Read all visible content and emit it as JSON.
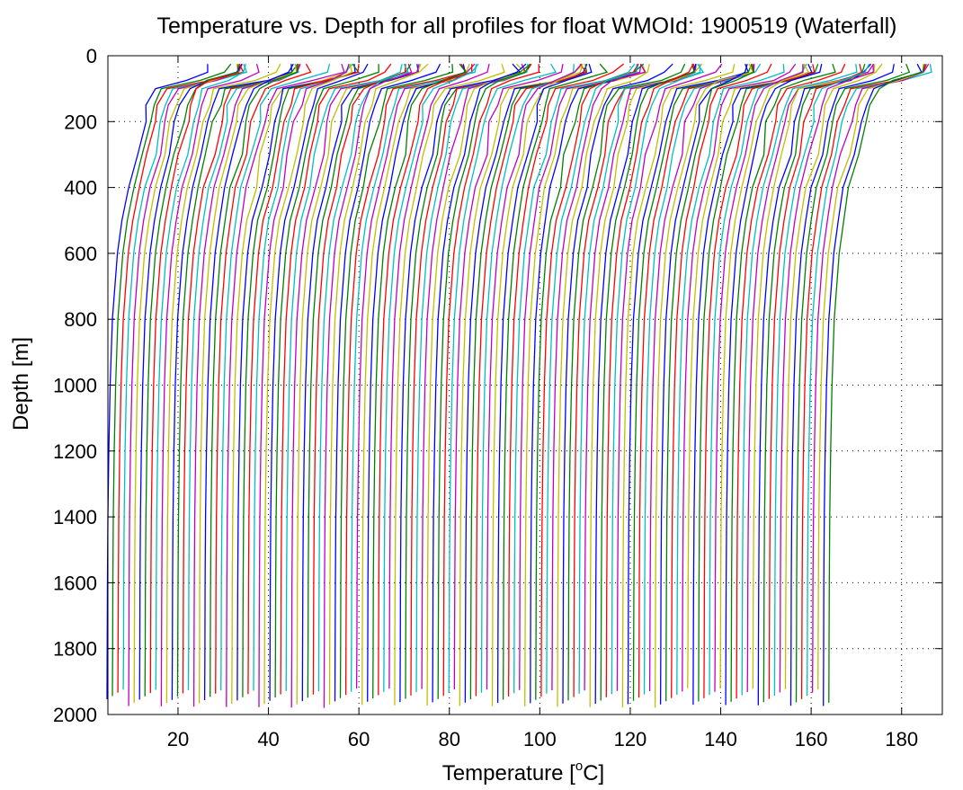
{
  "chart_data": {
    "type": "line",
    "title": "Temperature vs. Depth for all profiles for float WMOId: 1900519 (Waterfall)",
    "xlabel": {
      "before": "Temperature [",
      "sup": "o",
      "after": "C]"
    },
    "ylabel": "Depth [m]",
    "xlim": [
      4.5,
      189
    ],
    "ylim": [
      2000,
      0
    ],
    "y_reversed": true,
    "grid": true,
    "grid_style": "dotted",
    "x_ticks": [
      20,
      40,
      60,
      80,
      100,
      120,
      140,
      160,
      180
    ],
    "y_ticks": [
      0,
      200,
      400,
      600,
      800,
      1000,
      1200,
      1400,
      1600,
      1800,
      2000
    ],
    "x_tick_labels": [
      "20",
      "40",
      "60",
      "80",
      "100",
      "120",
      "140",
      "160",
      "180"
    ],
    "y_tick_labels": [
      "0",
      "200",
      "400",
      "600",
      "800",
      "1000",
      "1200",
      "1400",
      "1600",
      "1800",
      "2000"
    ],
    "waterfall": {
      "profile_count": 134,
      "offset_per_profile_degC": 1.2,
      "first_profile_deep_temp_degC": 4.3,
      "color_cycle": [
        "#0000ff",
        "#008000",
        "#ff0000",
        "#00bfbf",
        "#bf00bf",
        "#bfbf00"
      ]
    },
    "representative_profile": {
      "depth_m": [
        25,
        50,
        75,
        100,
        150,
        200,
        300,
        400,
        500,
        600,
        800,
        1000,
        1200,
        1400,
        1600,
        1800,
        1970
      ],
      "temp_degC": [
        27.5,
        27.2,
        22.0,
        15.0,
        13.4,
        12.5,
        11.0,
        9.2,
        7.6,
        6.6,
        5.5,
        5.0,
        4.7,
        4.5,
        4.4,
        4.35,
        4.3
      ]
    }
  }
}
